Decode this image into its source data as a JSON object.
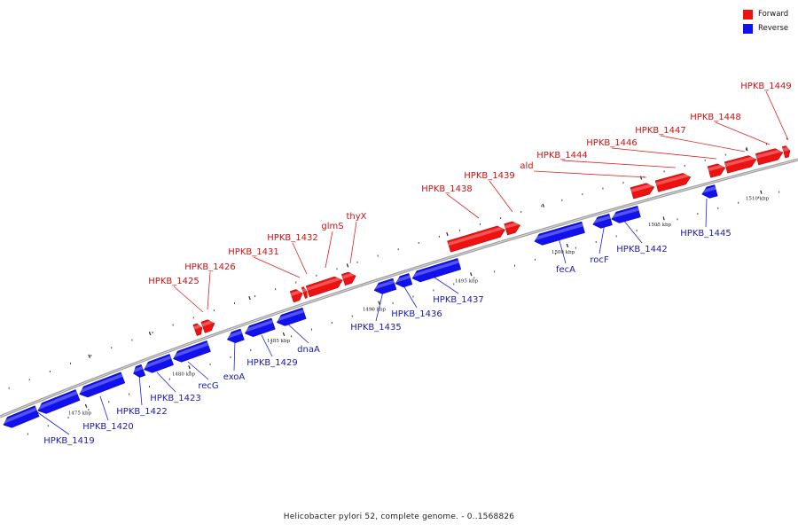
{
  "legend": [
    {
      "label": "Forward",
      "color": "#ee1111"
    },
    {
      "label": "Reverse",
      "color": "#1111ee"
    }
  ],
  "caption": "Helicobacter pylori 52, complete genome. - 0..1568826",
  "colors": {
    "forward": "#ee1111",
    "reverse": "#1111ee",
    "backbone": "#9a9a9a",
    "label_line_forward": "#dd2222",
    "label_line_reverse": "#2222cc"
  },
  "scale_labels": [
    "1475 kbp",
    "1480 kbp",
    "1485 kbp",
    "1490 kbp",
    "1495 kbp",
    "1500 kbp",
    "1505 kbp",
    "1510 kbp"
  ],
  "genes": [
    {
      "name": "HPKB_1419",
      "strand": "reverse"
    },
    {
      "name": "HPKB_1420",
      "strand": "reverse"
    },
    {
      "name": "HPKB_1422",
      "strand": "reverse"
    },
    {
      "name": "HPKB_1423",
      "strand": "reverse"
    },
    {
      "name": "recG",
      "strand": "reverse"
    },
    {
      "name": "exoA",
      "strand": "reverse"
    },
    {
      "name": "HPKB_1429",
      "strand": "reverse"
    },
    {
      "name": "dnaA",
      "strand": "reverse"
    },
    {
      "name": "HPKB_1435",
      "strand": "reverse"
    },
    {
      "name": "HPKB_1436",
      "strand": "reverse"
    },
    {
      "name": "HPKB_1437",
      "strand": "reverse"
    },
    {
      "name": "fecA",
      "strand": "reverse"
    },
    {
      "name": "rocF",
      "strand": "reverse"
    },
    {
      "name": "HPKB_1442",
      "strand": "reverse"
    },
    {
      "name": "HPKB_1445",
      "strand": "reverse"
    },
    {
      "name": "HPKB_1425",
      "strand": "forward"
    },
    {
      "name": "HPKB_1426",
      "strand": "forward"
    },
    {
      "name": "HPKB_1431",
      "strand": "forward"
    },
    {
      "name": "HPKB_1432",
      "strand": "forward"
    },
    {
      "name": "glmS",
      "strand": "forward"
    },
    {
      "name": "thyX",
      "strand": "forward"
    },
    {
      "name": "HPKB_1438",
      "strand": "forward"
    },
    {
      "name": "HPKB_1439",
      "strand": "forward"
    },
    {
      "name": "ald",
      "strand": "forward"
    },
    {
      "name": "HPKB_1444",
      "strand": "forward"
    },
    {
      "name": "HPKB_1446",
      "strand": "forward"
    },
    {
      "name": "HPKB_1447",
      "strand": "forward"
    },
    {
      "name": "HPKB_1448",
      "strand": "forward"
    },
    {
      "name": "HPKB_1449",
      "strand": "forward"
    }
  ]
}
